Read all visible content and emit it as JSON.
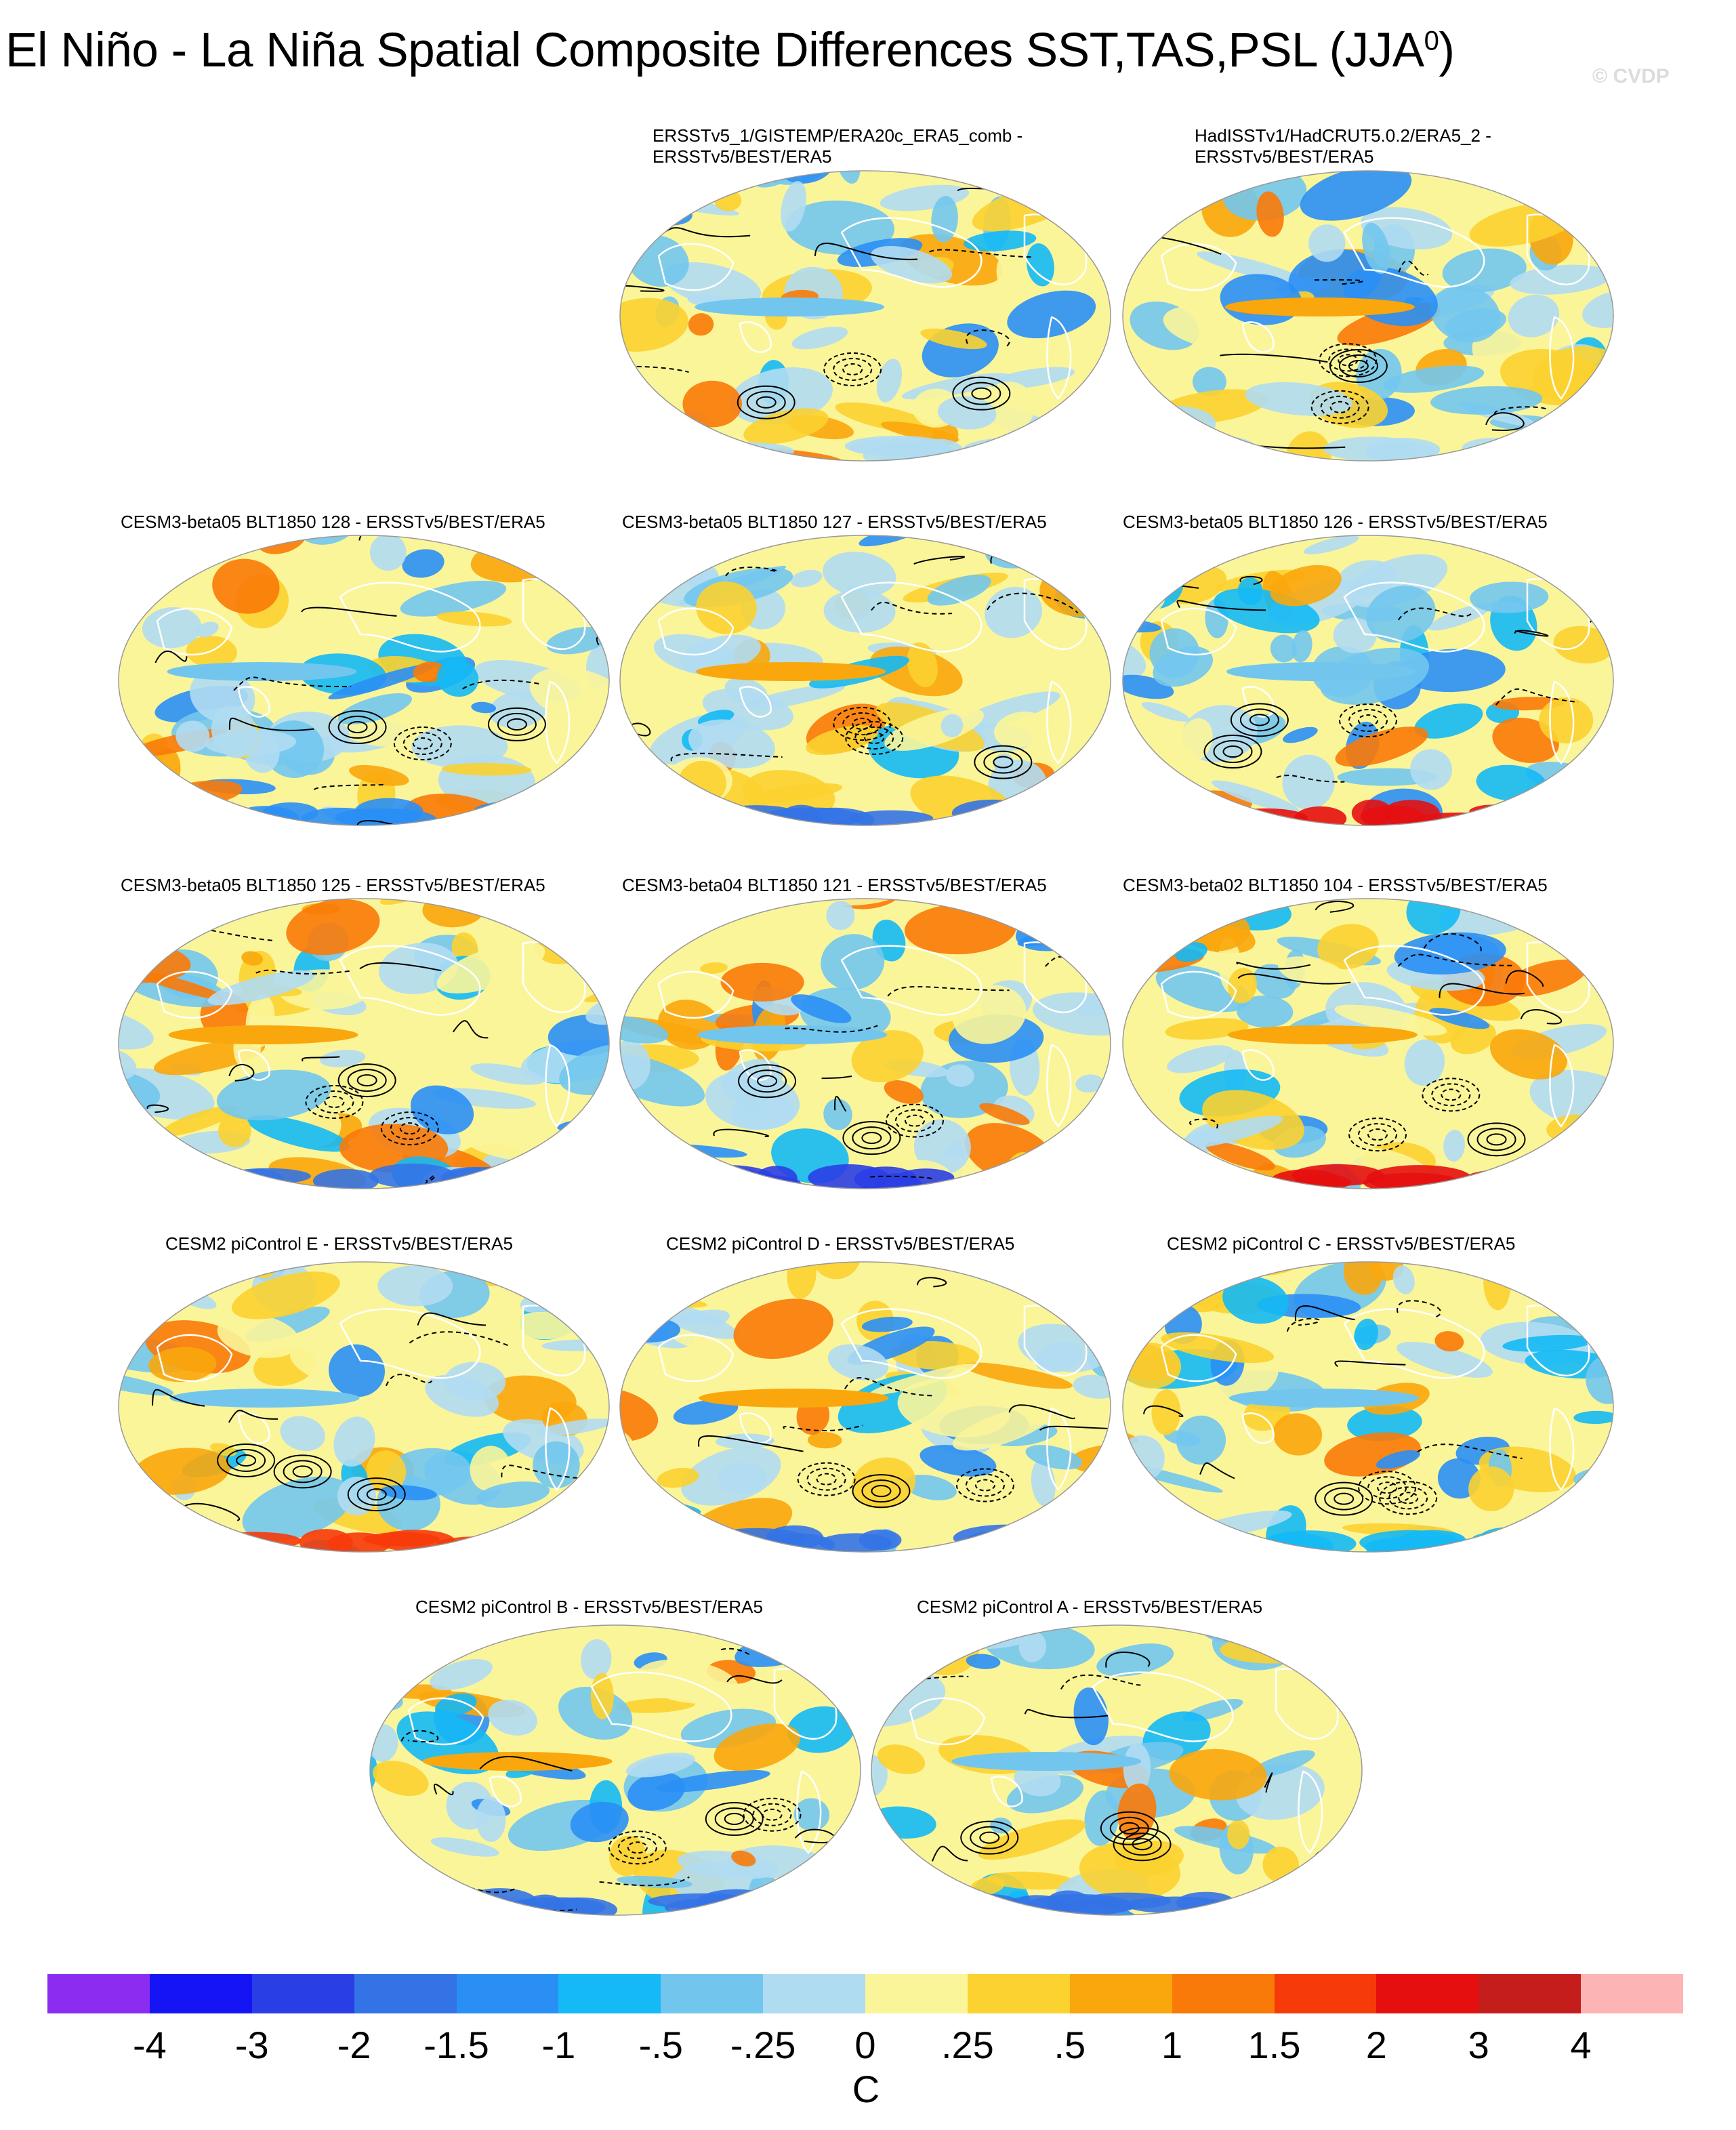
{
  "title": {
    "text": "El Niño - La Niña Spatial Composite Differences SST,TAS,PSL (JJA",
    "superscript": "0",
    "suffix": ")"
  },
  "watermark": "© CVDP",
  "panels": [
    {
      "title_lines": [
        "ERSSTv5_1/GISTEMP/ERA20c_ERA5_comb -",
        "ERSSTv5/BEST/ERA5"
      ]
    },
    {
      "title_lines": [
        "HadISSTv1/HadCRUT5.0.2/ERA5_2 -",
        "ERSSTv5/BEST/ERA5"
      ]
    },
    {
      "title_lines": [
        "CESM3-beta05 BLT1850 128 - ERSSTv5/BEST/ERA5"
      ]
    },
    {
      "title_lines": [
        "CESM3-beta05 BLT1850 127 - ERSSTv5/BEST/ERA5"
      ]
    },
    {
      "title_lines": [
        "CESM3-beta05 BLT1850 126 - ERSSTv5/BEST/ERA5"
      ]
    },
    {
      "title_lines": [
        "CESM3-beta05 BLT1850 125 - ERSSTv5/BEST/ERA5"
      ]
    },
    {
      "title_lines": [
        "CESM3-beta04 BLT1850 121 - ERSSTv5/BEST/ERA5"
      ]
    },
    {
      "title_lines": [
        "CESM3-beta02 BLT1850 104 - ERSSTv5/BEST/ERA5"
      ]
    },
    {
      "title_lines": [
        "CESM2 piControl E - ERSSTv5/BEST/ERA5"
      ]
    },
    {
      "title_lines": [
        "CESM2 piControl D - ERSSTv5/BEST/ERA5"
      ]
    },
    {
      "title_lines": [
        "CESM2 piControl C - ERSSTv5/BEST/ERA5"
      ]
    },
    {
      "title_lines": [
        "CESM2 piControl B - ERSSTv5/BEST/ERA5"
      ]
    },
    {
      "title_lines": [
        "CESM2 piControl A - ERSSTv5/BEST/ERA5"
      ]
    }
  ],
  "colorbar": {
    "colors": [
      "#8b2cf0",
      "#1414f5",
      "#2a3ee6",
      "#3373e6",
      "#2a8ff5",
      "#14b9f5",
      "#72c6ee",
      "#b0dcf2",
      "#fbf59a",
      "#fbd230",
      "#f9a70c",
      "#f97a08",
      "#f73a0a",
      "#e60f0f",
      "#c51c1c",
      "#fcb4b4"
    ],
    "labels": [
      "-4",
      "-3",
      "-2",
      "-1.5",
      "-1",
      "-.5",
      "-.25",
      "0",
      ".25",
      ".5",
      "1",
      "1.5",
      "2",
      "3",
      "4"
    ],
    "units": "C"
  }
}
